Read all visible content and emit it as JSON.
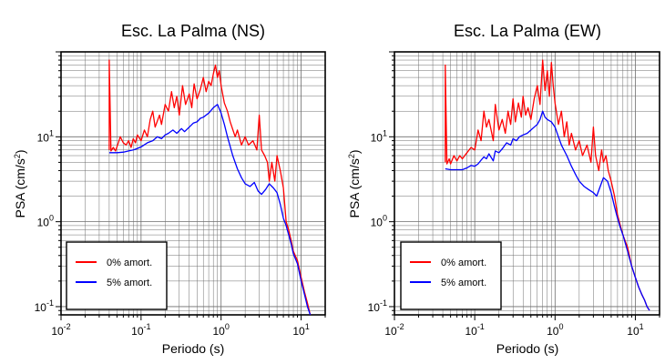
{
  "chart_data": [
    {
      "type": "line",
      "title": "Esc. La Palma (NS)",
      "xlabel": "Periodo (s)",
      "ylabel": {
        "base": "PSA (cm/s",
        "sup": "2",
        "close": ")"
      },
      "xscale": "log",
      "yscale": "log",
      "xlim": [
        0.01,
        20
      ],
      "ylim": [
        0.08,
        100
      ],
      "grid": true,
      "legend_position": "bottom-left",
      "x_ticks": [
        {
          "value": 0.01,
          "base": "10",
          "exp": "-2"
        },
        {
          "value": 0.1,
          "base": "10",
          "exp": "-1"
        },
        {
          "value": 1,
          "base": "10",
          "exp": "0"
        },
        {
          "value": 10,
          "base": "10",
          "exp": "1"
        }
      ],
      "y_ticks": [
        {
          "value": 0.1,
          "base": "10",
          "exp": "-1"
        },
        {
          "value": 1,
          "base": "10",
          "exp": "0"
        },
        {
          "value": 10,
          "base": "10",
          "exp": "1"
        }
      ],
      "series": [
        {
          "name": "0% amort.",
          "color": "#ff0000",
          "points": [
            [
              0.04,
              7
            ],
            [
              0.04,
              80
            ],
            [
              0.042,
              6.8
            ],
            [
              0.045,
              7.5
            ],
            [
              0.048,
              6.8
            ],
            [
              0.052,
              8.5
            ],
            [
              0.055,
              10
            ],
            [
              0.06,
              8.5
            ],
            [
              0.065,
              8
            ],
            [
              0.07,
              9
            ],
            [
              0.075,
              7.5
            ],
            [
              0.08,
              9.5
            ],
            [
              0.085,
              8.5
            ],
            [
              0.09,
              10.5
            ],
            [
              0.1,
              9
            ],
            [
              0.11,
              12
            ],
            [
              0.12,
              10
            ],
            [
              0.13,
              16
            ],
            [
              0.14,
              20
            ],
            [
              0.15,
              13
            ],
            [
              0.17,
              18
            ],
            [
              0.18,
              14
            ],
            [
              0.2,
              24
            ],
            [
              0.22,
              20
            ],
            [
              0.24,
              34
            ],
            [
              0.26,
              22
            ],
            [
              0.28,
              30
            ],
            [
              0.3,
              18
            ],
            [
              0.33,
              40
            ],
            [
              0.36,
              24
            ],
            [
              0.4,
              32
            ],
            [
              0.43,
              22
            ],
            [
              0.46,
              42
            ],
            [
              0.5,
              28
            ],
            [
              0.55,
              36
            ],
            [
              0.6,
              50
            ],
            [
              0.65,
              34
            ],
            [
              0.7,
              45
            ],
            [
              0.75,
              40
            ],
            [
              0.8,
              55
            ],
            [
              0.85,
              70
            ],
            [
              0.9,
              50
            ],
            [
              0.95,
              60
            ],
            [
              1.0,
              40
            ],
            [
              1.1,
              25
            ],
            [
              1.2,
              20
            ],
            [
              1.3,
              15
            ],
            [
              1.5,
              10
            ],
            [
              1.6,
              12
            ],
            [
              1.8,
              8
            ],
            [
              2.0,
              10
            ],
            [
              2.2,
              8
            ],
            [
              2.5,
              9
            ],
            [
              2.8,
              7
            ],
            [
              3.0,
              18
            ],
            [
              3.2,
              7
            ],
            [
              3.5,
              6
            ],
            [
              3.8,
              5
            ],
            [
              4.0,
              3
            ],
            [
              4.3,
              5
            ],
            [
              4.7,
              3
            ],
            [
              5.0,
              6
            ],
            [
              5.5,
              4
            ],
            [
              6.0,
              2.5
            ],
            [
              6.5,
              1
            ],
            [
              7.0,
              0.8
            ],
            [
              7.5,
              0.6
            ],
            [
              8.0,
              0.45
            ],
            [
              9.0,
              0.35
            ],
            [
              10.0,
              0.22
            ],
            [
              11.0,
              0.15
            ],
            [
              12.0,
              0.11
            ],
            [
              13.0,
              0.08
            ]
          ]
        },
        {
          "name": "5% amort.",
          "color": "#0000ff",
          "points": [
            [
              0.04,
              6.5
            ],
            [
              0.05,
              6.5
            ],
            [
              0.06,
              6.6
            ],
            [
              0.07,
              6.8
            ],
            [
              0.08,
              7
            ],
            [
              0.09,
              7.3
            ],
            [
              0.1,
              7.6
            ],
            [
              0.12,
              8.5
            ],
            [
              0.14,
              9
            ],
            [
              0.16,
              10
            ],
            [
              0.18,
              9.5
            ],
            [
              0.2,
              10.5
            ],
            [
              0.22,
              11
            ],
            [
              0.25,
              12
            ],
            [
              0.28,
              11
            ],
            [
              0.32,
              12.5
            ],
            [
              0.35,
              11.5
            ],
            [
              0.4,
              13
            ],
            [
              0.45,
              14.5
            ],
            [
              0.5,
              15
            ],
            [
              0.55,
              16.5
            ],
            [
              0.6,
              17
            ],
            [
              0.7,
              19
            ],
            [
              0.8,
              22
            ],
            [
              0.9,
              24
            ],
            [
              1.0,
              19
            ],
            [
              1.1,
              14
            ],
            [
              1.2,
              10
            ],
            [
              1.4,
              6
            ],
            [
              1.6,
              4.2
            ],
            [
              1.8,
              3.3
            ],
            [
              2.0,
              2.8
            ],
            [
              2.3,
              2.6
            ],
            [
              2.6,
              2.9
            ],
            [
              2.9,
              2.3
            ],
            [
              3.2,
              2.1
            ],
            [
              3.6,
              2.4
            ],
            [
              4.0,
              2.8
            ],
            [
              4.5,
              2.5
            ],
            [
              5.0,
              2.2
            ],
            [
              5.5,
              1.6
            ],
            [
              6.0,
              1.1
            ],
            [
              6.5,
              0.9
            ],
            [
              7.0,
              0.7
            ],
            [
              7.5,
              0.55
            ],
            [
              8.0,
              0.42
            ],
            [
              9.0,
              0.32
            ],
            [
              10.0,
              0.2
            ],
            [
              11.0,
              0.14
            ],
            [
              12.0,
              0.1
            ],
            [
              13.0,
              0.08
            ]
          ]
        }
      ]
    },
    {
      "type": "line",
      "title": "Esc. La Palma (EW)",
      "xlabel": "Periodo (s)",
      "ylabel": {
        "base": "PSA (cm/s",
        "sup": "2",
        "close": ")"
      },
      "xscale": "log",
      "yscale": "log",
      "xlim": [
        0.01,
        20
      ],
      "ylim": [
        0.08,
        100
      ],
      "grid": true,
      "legend_position": "bottom-left",
      "x_ticks": [
        {
          "value": 0.01,
          "base": "10",
          "exp": "-2"
        },
        {
          "value": 0.1,
          "base": "10",
          "exp": "-1"
        },
        {
          "value": 1,
          "base": "10",
          "exp": "0"
        },
        {
          "value": 10,
          "base": "10",
          "exp": "1"
        }
      ],
      "y_ticks": [
        {
          "value": 0.1,
          "base": "10",
          "exp": "-1"
        },
        {
          "value": 1,
          "base": "10",
          "exp": "0"
        },
        {
          "value": 10,
          "base": "10",
          "exp": "1"
        }
      ],
      "series": [
        {
          "name": "0% amort.",
          "color": "#ff0000",
          "points": [
            [
              0.043,
              5
            ],
            [
              0.043,
              70
            ],
            [
              0.045,
              4.8
            ],
            [
              0.048,
              5.5
            ],
            [
              0.05,
              4.8
            ],
            [
              0.055,
              6
            ],
            [
              0.06,
              5.2
            ],
            [
              0.065,
              6
            ],
            [
              0.07,
              5.5
            ],
            [
              0.08,
              6.5
            ],
            [
              0.09,
              7.5
            ],
            [
              0.1,
              7
            ],
            [
              0.11,
              12
            ],
            [
              0.12,
              9
            ],
            [
              0.13,
              20
            ],
            [
              0.14,
              13
            ],
            [
              0.15,
              16
            ],
            [
              0.17,
              9
            ],
            [
              0.18,
              24
            ],
            [
              0.2,
              12
            ],
            [
              0.22,
              16
            ],
            [
              0.24,
              11
            ],
            [
              0.26,
              20
            ],
            [
              0.28,
              14
            ],
            [
              0.3,
              28
            ],
            [
              0.32,
              15
            ],
            [
              0.35,
              25
            ],
            [
              0.38,
              17
            ],
            [
              0.4,
              30
            ],
            [
              0.43,
              18
            ],
            [
              0.46,
              22
            ],
            [
              0.5,
              16
            ],
            [
              0.55,
              28
            ],
            [
              0.6,
              40
            ],
            [
              0.65,
              24
            ],
            [
              0.7,
              80
            ],
            [
              0.75,
              35
            ],
            [
              0.8,
              60
            ],
            [
              0.85,
              30
            ],
            [
              0.9,
              75
            ],
            [
              0.95,
              40
            ],
            [
              1.0,
              25
            ],
            [
              1.1,
              14
            ],
            [
              1.2,
              20
            ],
            [
              1.3,
              10
            ],
            [
              1.4,
              15
            ],
            [
              1.5,
              8
            ],
            [
              1.6,
              11
            ],
            [
              1.8,
              7
            ],
            [
              2.0,
              9
            ],
            [
              2.2,
              6
            ],
            [
              2.5,
              8
            ],
            [
              2.8,
              5
            ],
            [
              3.0,
              13
            ],
            [
              3.2,
              6
            ],
            [
              3.5,
              4
            ],
            [
              3.8,
              7
            ],
            [
              4.0,
              5
            ],
            [
              4.3,
              6
            ],
            [
              4.6,
              4
            ],
            [
              5.0,
              3
            ],
            [
              5.5,
              2
            ],
            [
              6.0,
              1.2
            ],
            [
              6.5,
              0.9
            ],
            [
              7.0,
              0.7
            ],
            [
              8.0,
              0.5
            ],
            [
              9.0,
              0.3
            ],
            [
              10.0,
              0.22
            ],
            [
              11.0,
              0.17
            ],
            [
              12.0,
              0.14
            ],
            [
              13.0,
              0.12
            ],
            [
              14.0,
              0.1
            ],
            [
              15.0,
              0.09
            ]
          ]
        },
        {
          "name": "5% amort.",
          "color": "#0000ff",
          "points": [
            [
              0.043,
              4.2
            ],
            [
              0.05,
              4.1
            ],
            [
              0.06,
              4.1
            ],
            [
              0.07,
              4.1
            ],
            [
              0.08,
              4.3
            ],
            [
              0.09,
              4.6
            ],
            [
              0.1,
              4.5
            ],
            [
              0.11,
              4.8
            ],
            [
              0.12,
              5.3
            ],
            [
              0.13,
              5.8
            ],
            [
              0.14,
              5.5
            ],
            [
              0.15,
              6.3
            ],
            [
              0.17,
              5.2
            ],
            [
              0.18,
              6.8
            ],
            [
              0.2,
              6.5
            ],
            [
              0.22,
              7.2
            ],
            [
              0.25,
              8.5
            ],
            [
              0.28,
              8
            ],
            [
              0.3,
              9.5
            ],
            [
              0.33,
              9
            ],
            [
              0.36,
              10
            ],
            [
              0.4,
              10.5
            ],
            [
              0.45,
              11
            ],
            [
              0.5,
              12
            ],
            [
              0.55,
              13
            ],
            [
              0.6,
              14
            ],
            [
              0.65,
              16
            ],
            [
              0.7,
              20
            ],
            [
              0.75,
              17
            ],
            [
              0.8,
              16
            ],
            [
              0.9,
              15
            ],
            [
              1.0,
              13
            ],
            [
              1.1,
              10
            ],
            [
              1.2,
              8
            ],
            [
              1.4,
              6
            ],
            [
              1.6,
              4.5
            ],
            [
              1.8,
              3.6
            ],
            [
              2.0,
              3
            ],
            [
              2.3,
              2.6
            ],
            [
              2.6,
              2.4
            ],
            [
              3.0,
              2.2
            ],
            [
              3.3,
              2
            ],
            [
              3.6,
              2.5
            ],
            [
              4.0,
              3.3
            ],
            [
              4.5,
              3
            ],
            [
              5.0,
              2.2
            ],
            [
              5.5,
              1.5
            ],
            [
              6.0,
              1.1
            ],
            [
              6.5,
              0.85
            ],
            [
              7.0,
              0.7
            ],
            [
              8.0,
              0.45
            ],
            [
              9.0,
              0.3
            ],
            [
              10.0,
              0.22
            ],
            [
              11.0,
              0.17
            ],
            [
              12.0,
              0.14
            ],
            [
              13.0,
              0.12
            ],
            [
              14.0,
              0.1
            ],
            [
              15.0,
              0.09
            ]
          ]
        }
      ]
    }
  ]
}
